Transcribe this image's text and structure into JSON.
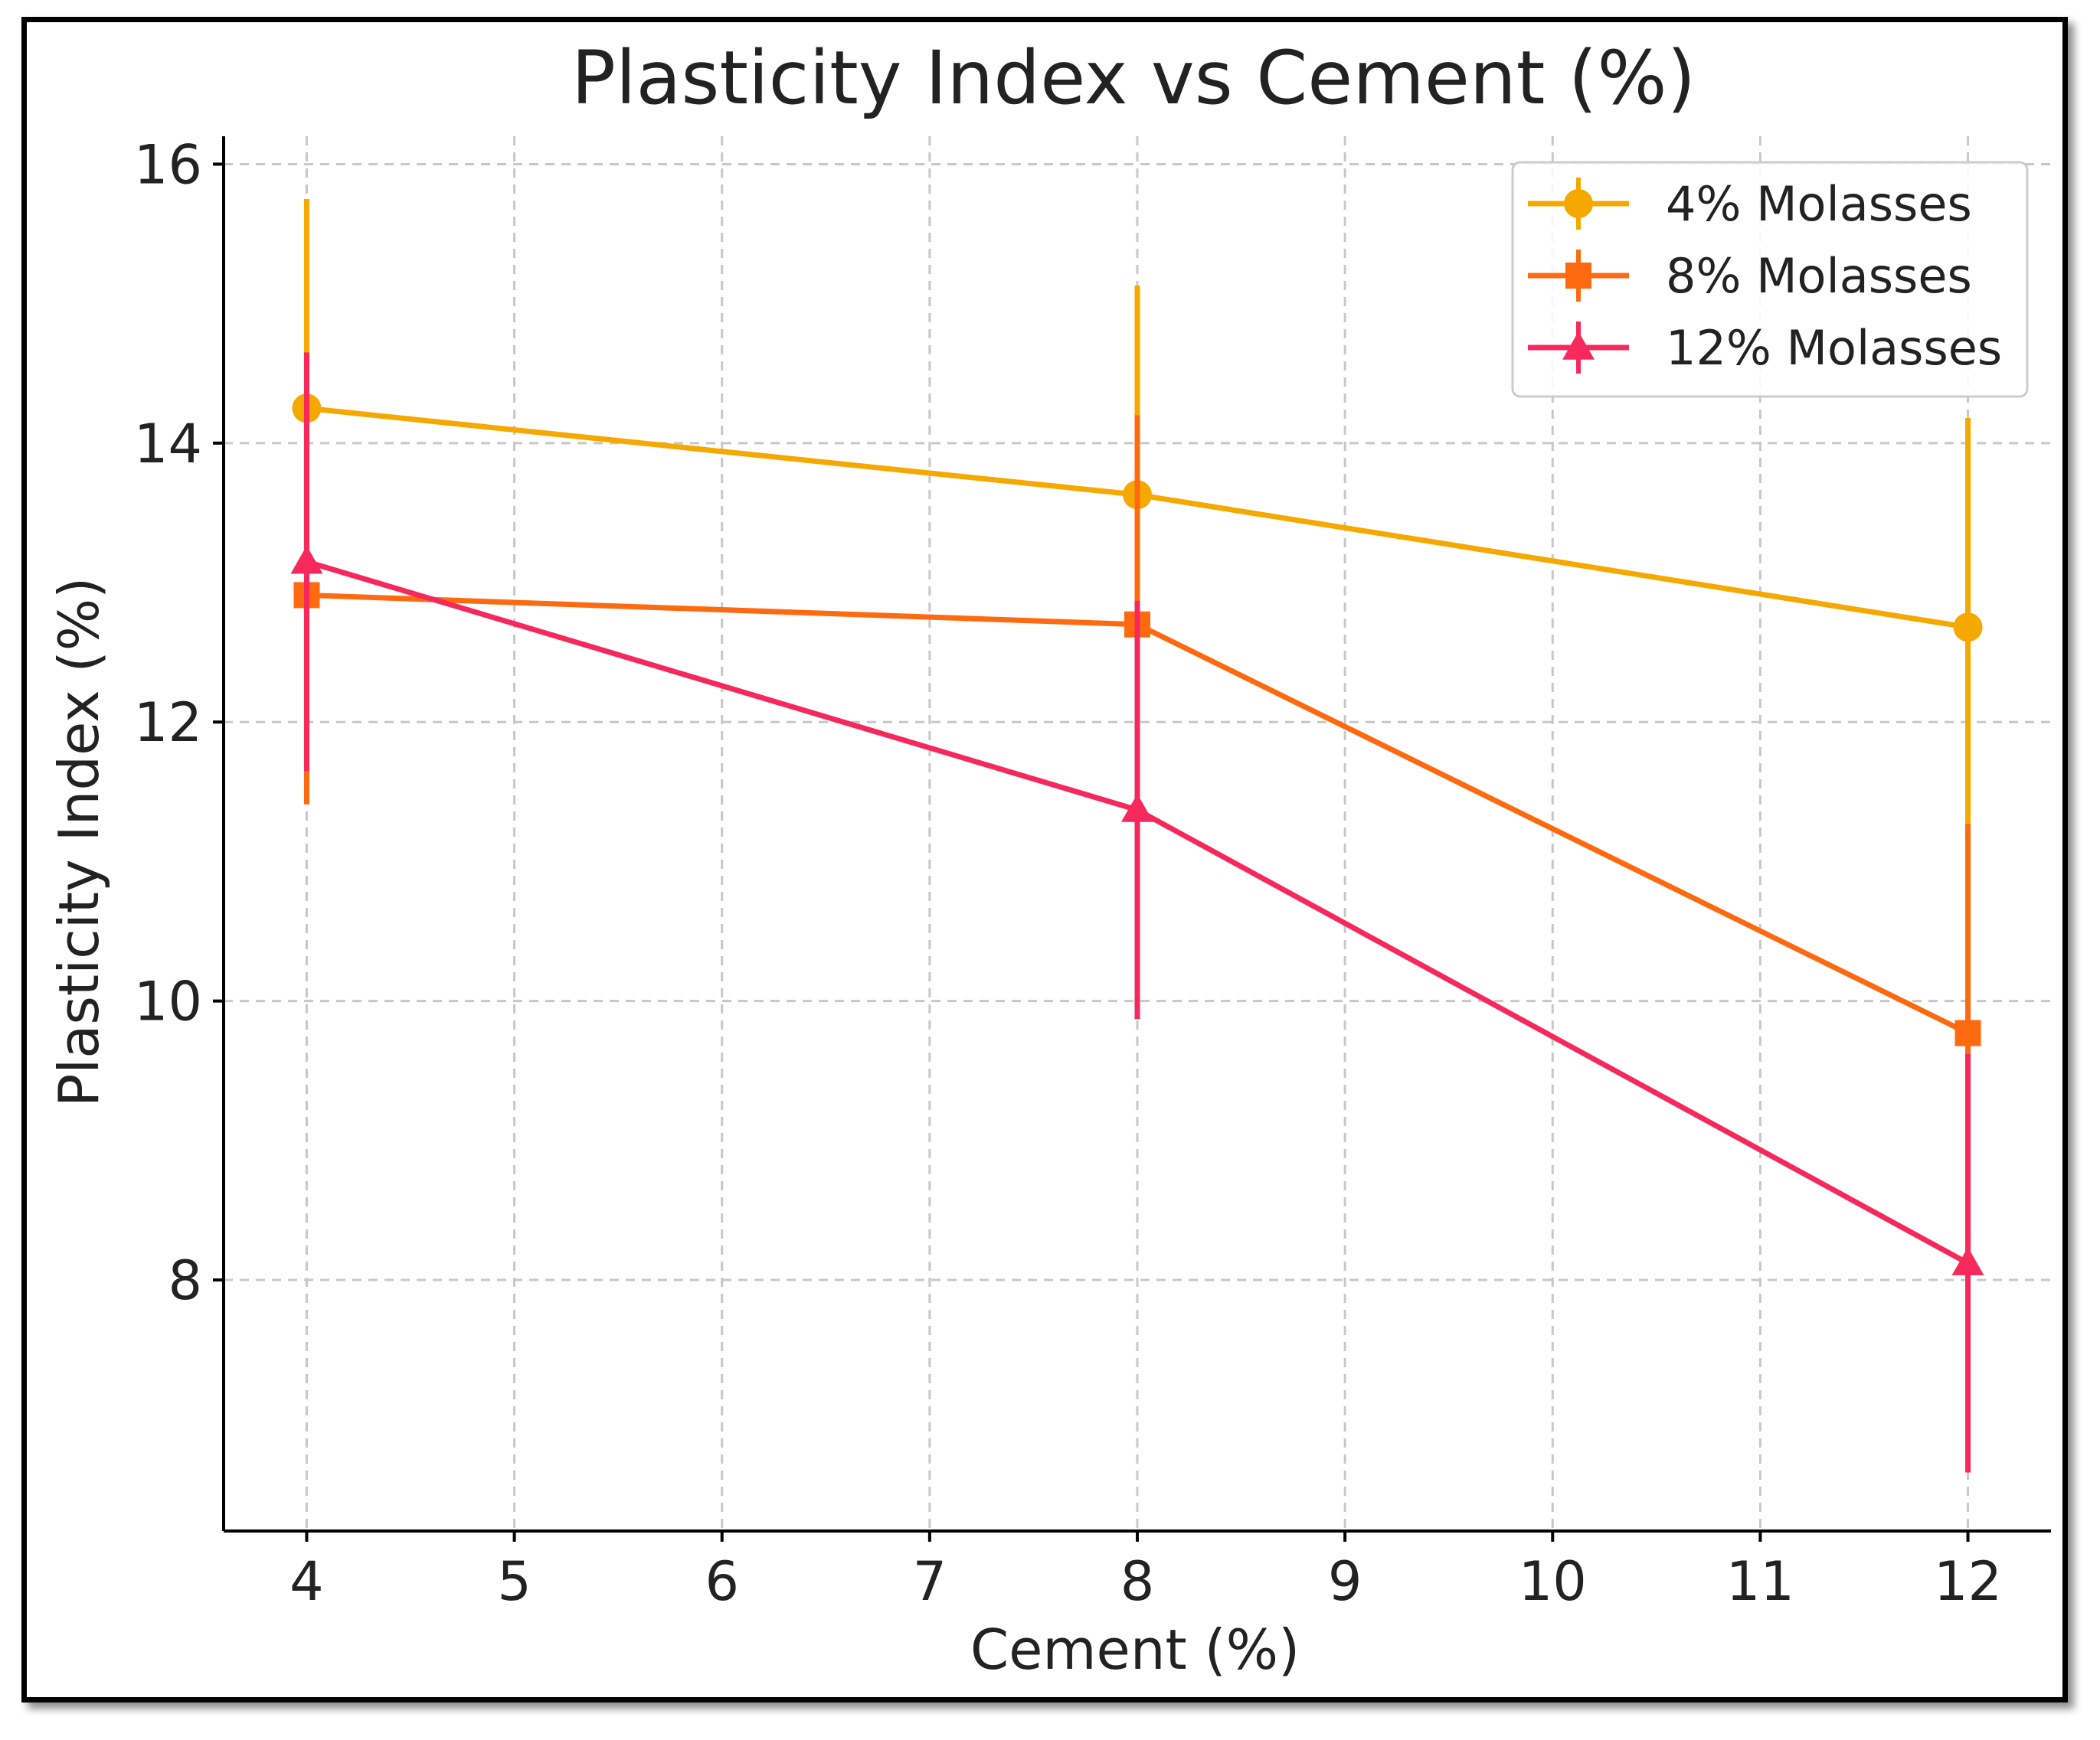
{
  "chart_data": {
    "type": "line",
    "title": "Plasticity Index vs Cement (%)",
    "xlabel": "Cement (%)",
    "ylabel": "Plasticity Index (%)",
    "x": [
      4,
      8,
      12
    ],
    "xlim": [
      3.6,
      12.4
    ],
    "ylim": [
      6.2,
      16.2
    ],
    "xticks": [
      4,
      5,
      6,
      7,
      8,
      9,
      10,
      11,
      12
    ],
    "yticks": [
      8,
      10,
      12,
      14,
      16
    ],
    "grid": true,
    "legend_position": "top-right",
    "series": [
      {
        "name": "4% Molasses",
        "color": "#f5a800",
        "marker": "circle",
        "values": [
          14.25,
          13.63,
          12.68
        ],
        "error_low": [
          12.75,
          12.13,
          11.18
        ],
        "error_high": [
          15.75,
          15.13,
          14.18
        ]
      },
      {
        "name": "8% Molasses",
        "color": "#ff6a10",
        "marker": "square",
        "values": [
          12.91,
          12.7,
          9.77
        ],
        "error_low": [
          11.41,
          11.2,
          8.27
        ],
        "error_high": [
          14.41,
          14.2,
          11.27
        ]
      },
      {
        "name": "12% Molasses",
        "color": "#f7295c",
        "marker": "triangle",
        "values": [
          13.15,
          11.37,
          8.12
        ],
        "error_low": [
          11.65,
          9.87,
          6.62
        ],
        "error_high": [
          14.65,
          12.87,
          9.62
        ]
      }
    ]
  }
}
